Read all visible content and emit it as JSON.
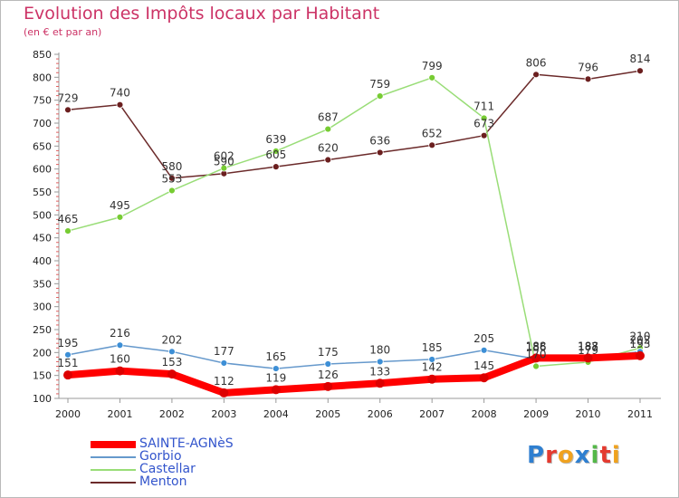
{
  "header": {
    "title": "Evolution des Impôts locaux par Habitant",
    "subtitle": "(en € et par an)"
  },
  "logo": {
    "text": "Proxiti",
    "colors": [
      "#2f7fd0",
      "#e43a2f",
      "#f0a21e",
      "#2f7fd0",
      "#54b848",
      "#e43a2f",
      "#f0a21e"
    ]
  },
  "chart_data": {
    "type": "line",
    "x": [
      "2000",
      "2001",
      "2002",
      "2003",
      "2004",
      "2005",
      "2006",
      "2007",
      "2008",
      "2009",
      "2010",
      "2011"
    ],
    "ylim": [
      100,
      850
    ],
    "yticks": [
      100,
      150,
      200,
      250,
      300,
      350,
      400,
      450,
      500,
      550,
      600,
      650,
      700,
      750,
      800,
      850
    ],
    "grid": false,
    "legend": "bottom-left",
    "series": [
      {
        "name": "SAINTE-AGNèS",
        "color": "#ff0000",
        "marker": "#dd0000",
        "values": [
          151,
          160,
          153,
          112,
          119,
          126,
          133,
          142,
          145,
          188,
          188,
          193
        ]
      },
      {
        "name": "Gorbio",
        "color": "#6699cc",
        "marker": "#3d8fd6",
        "values": [
          195,
          216,
          202,
          177,
          165,
          175,
          180,
          185,
          205,
          186,
          187,
          202
        ]
      },
      {
        "name": "Castellar",
        "color": "#99dd77",
        "marker": "#77cc33",
        "values": [
          465,
          495,
          553,
          602,
          639,
          687,
          759,
          799,
          711,
          170,
          179,
          210
        ]
      },
      {
        "name": "Menton",
        "color": "#6b2a2a",
        "marker": "#6b1f1f",
        "values": [
          729,
          740,
          580,
          590,
          605,
          620,
          636,
          652,
          673,
          806,
          796,
          814
        ]
      }
    ]
  }
}
